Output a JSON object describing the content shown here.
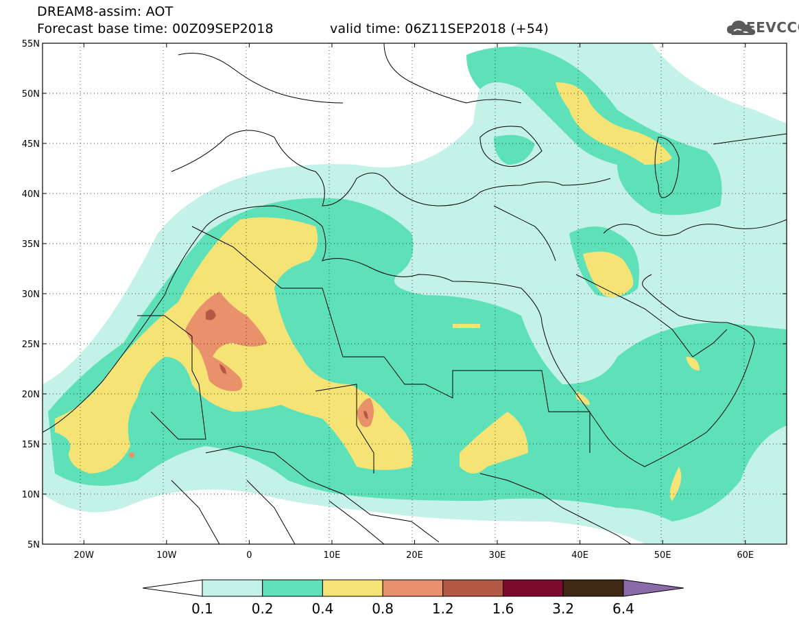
{
  "header": {
    "model_line": "DREAM8-assim: AOT",
    "base_time_line": "Forecast base time: 00Z09SEP2018",
    "valid_time_line": "valid time: 06Z11SEP2018 (+54)",
    "logo_text": "SEEVCCC",
    "logo_icon": "cloud-icon"
  },
  "map": {
    "lon_range": [
      -25,
      65
    ],
    "lat_range": [
      5,
      55
    ],
    "lat_labels": [
      "55N",
      "50N",
      "45N",
      "40N",
      "35N",
      "30N",
      "25N",
      "20N",
      "15N",
      "10N",
      "5N"
    ],
    "lat_values": [
      55,
      50,
      45,
      40,
      35,
      30,
      25,
      20,
      15,
      10,
      5
    ],
    "lon_labels": [
      "20W",
      "10W",
      "0",
      "10E",
      "20E",
      "30E",
      "40E",
      "50E",
      "60E"
    ],
    "lon_values": [
      -20,
      -10,
      0,
      10,
      20,
      30,
      40,
      50,
      60
    ],
    "grid": "dotted"
  },
  "colorbar": {
    "levels": [
      "0.1",
      "0.2",
      "0.4",
      "0.8",
      "1.2",
      "1.6",
      "3.2",
      "6.4"
    ],
    "colors": [
      "#c4f2e8",
      "#5ee0b8",
      "#f5e475",
      "#e8916a",
      "#b45a44",
      "#7d0a2e",
      "#3f2814",
      "#8a6aa8"
    ],
    "under_color": "#ffffff",
    "over_color": "#8a6aa8"
  }
}
